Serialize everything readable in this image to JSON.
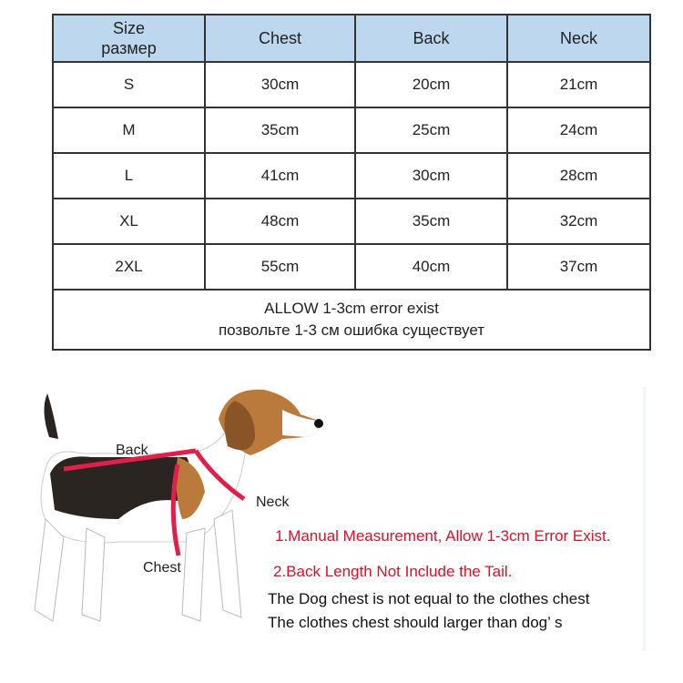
{
  "table": {
    "header": {
      "size": "Size",
      "size_ru": "размер",
      "chest": "Chest",
      "back": "Back",
      "neck": "Neck"
    },
    "rows": [
      {
        "size": "S",
        "chest": "30cm",
        "back": "20cm",
        "neck": "21cm"
      },
      {
        "size": "M",
        "chest": "35cm",
        "back": "25cm",
        "neck": "24cm"
      },
      {
        "size": "L",
        "chest": "41cm",
        "back": "30cm",
        "neck": "28cm"
      },
      {
        "size": "XL",
        "chest": "48cm",
        "back": "35cm",
        "neck": "32cm"
      },
      {
        "size": "2XL",
        "chest": "55cm",
        "back": "40cm",
        "neck": "37cm"
      }
    ],
    "footer": {
      "en": "ALLOW 1-3cm error exist",
      "ru": "позвольте 1-3 см ошибка существует"
    },
    "header_color": "#bdd7ee"
  },
  "diagram": {
    "back_label": "Back",
    "neck_label": "Neck",
    "chest_label": "Chest",
    "strap_color": "#e0204a"
  },
  "notes": {
    "note1": "1.Manual  Measurement, Allow 1-3cm Error Exist.",
    "note2": "2.Back Length Not  Include the Tail.",
    "line3": "The Dog chest is not equal to the clothes chest",
    "line4": "The clothes chest should larger than dog’ s",
    "accent_color": "#d4122a"
  }
}
